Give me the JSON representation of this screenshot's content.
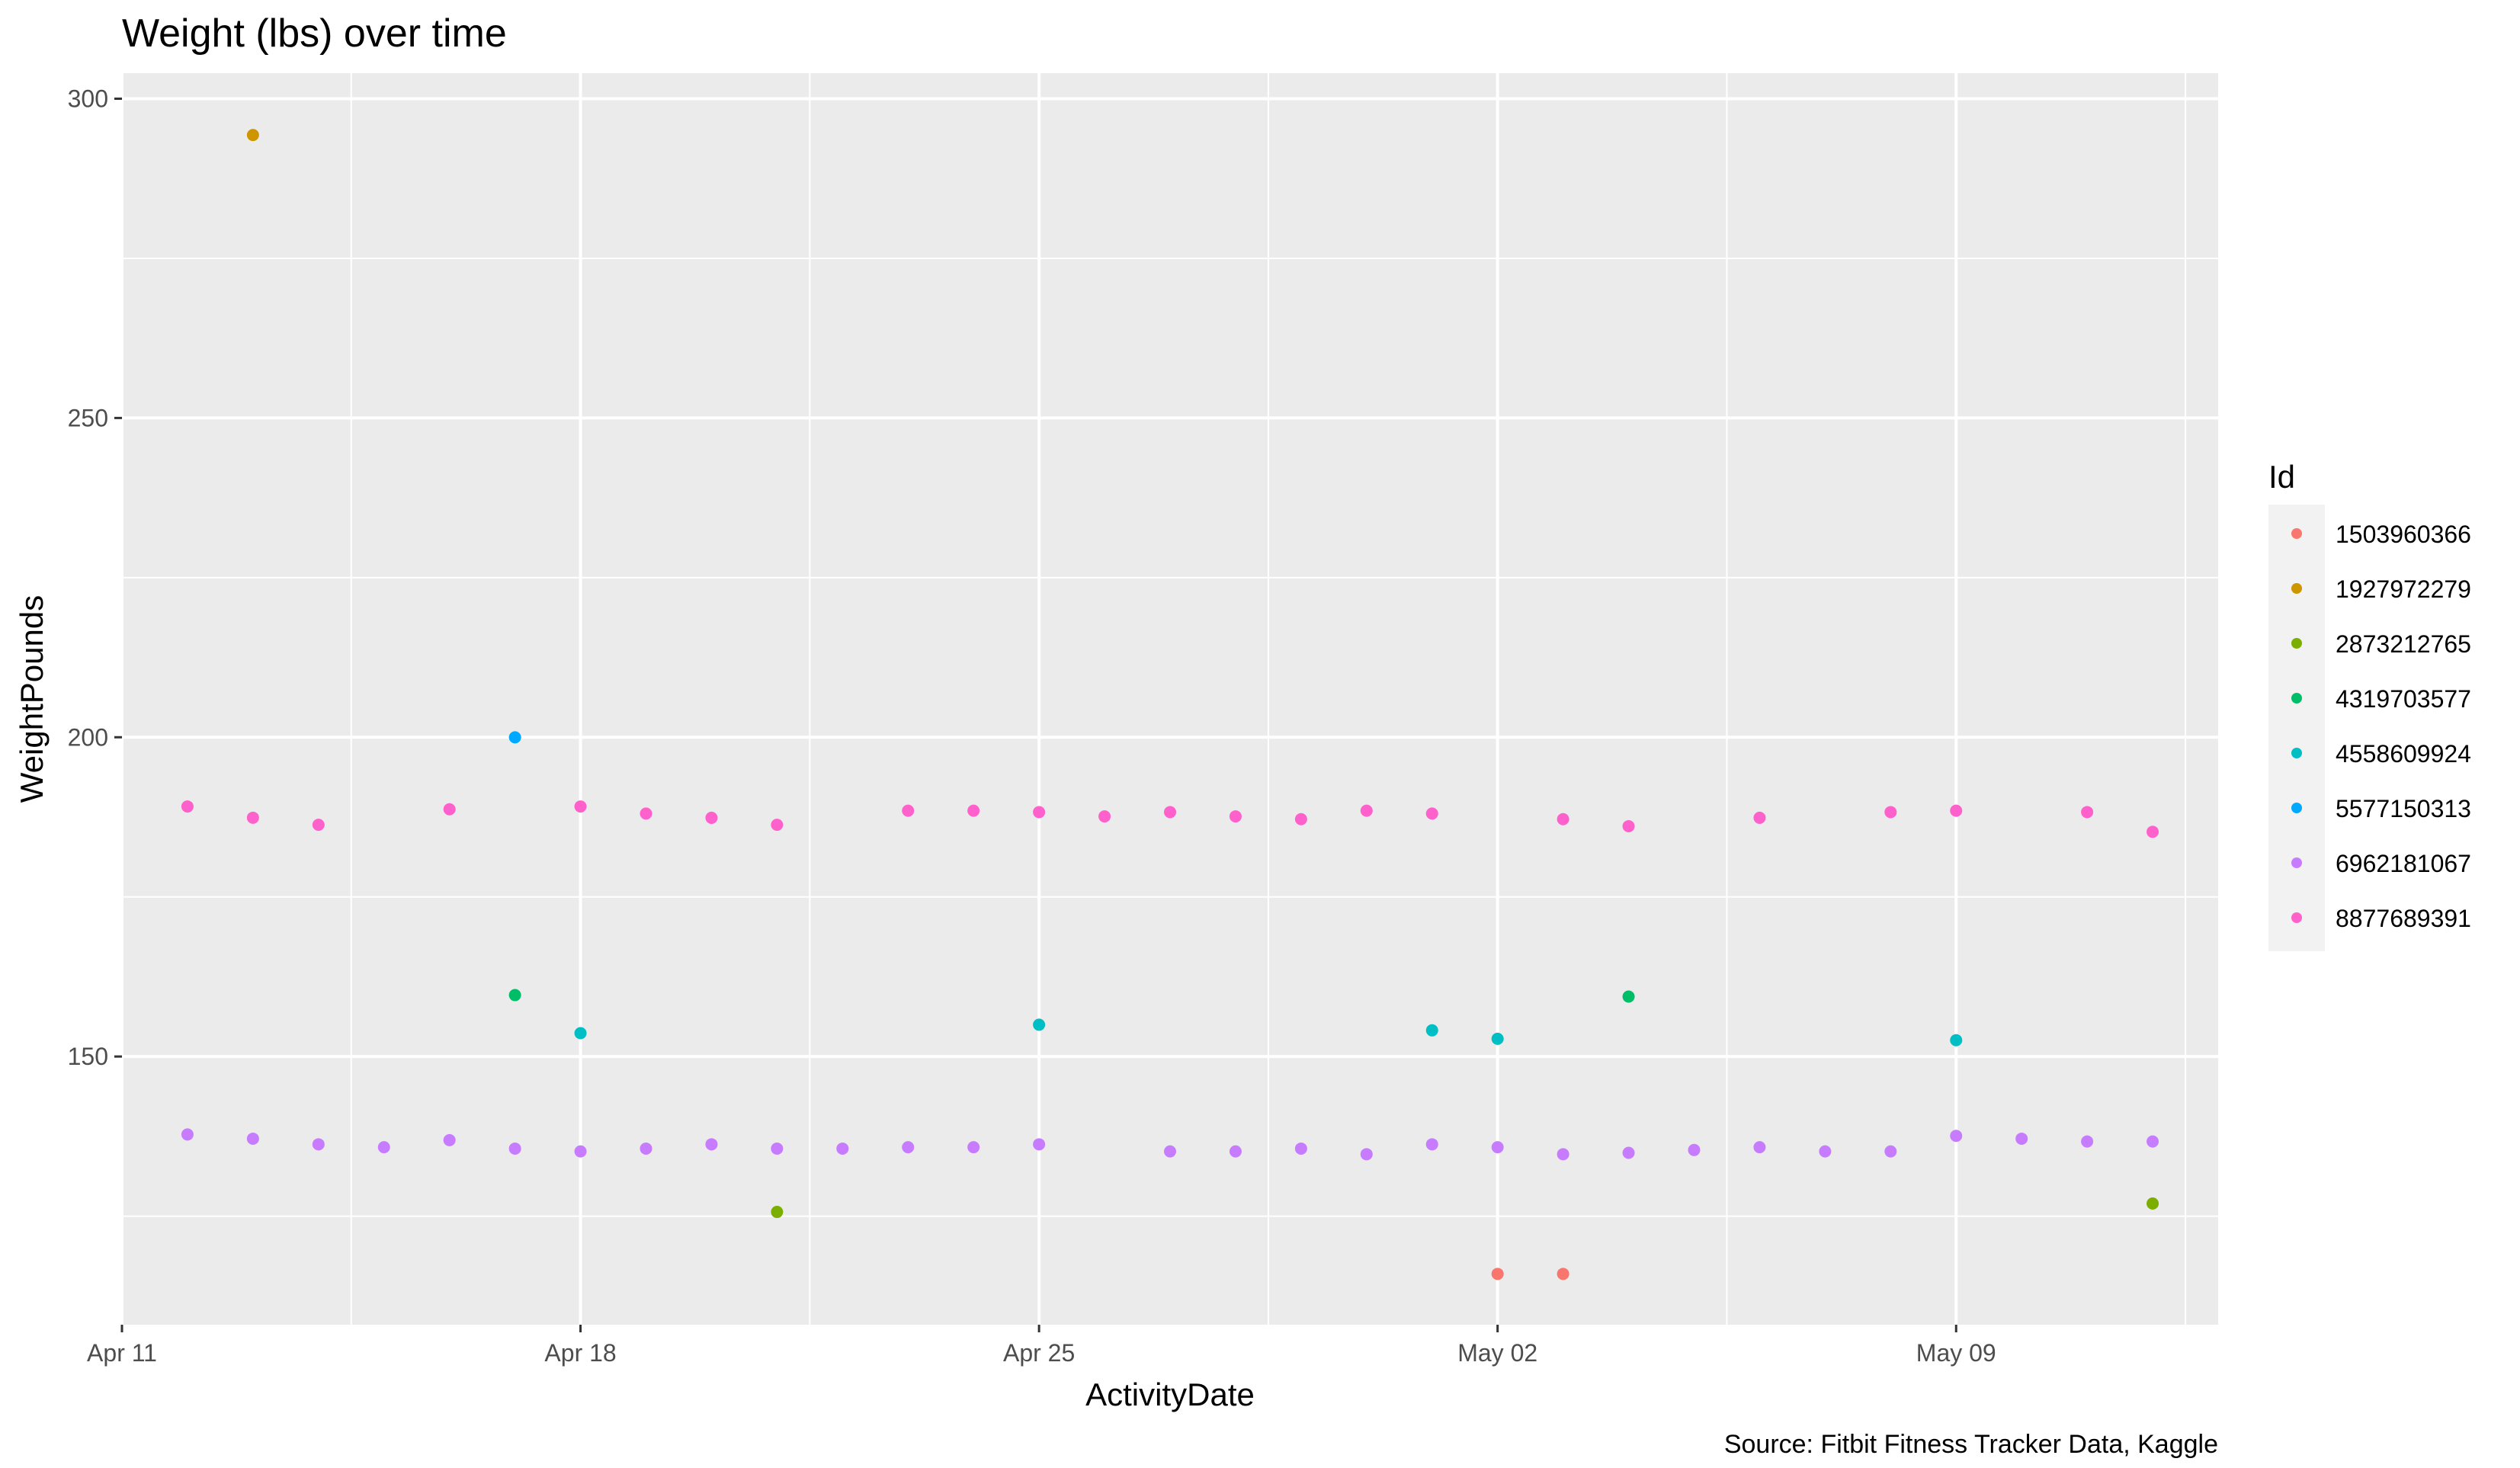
{
  "chart_data": {
    "type": "scatter",
    "title": "Weight (lbs) over time",
    "caption": "Source: Fitbit Fitness Tracker Data, Kaggle",
    "xlabel": "ActivityDate",
    "ylabel": "WeightPounds",
    "x_type": "date",
    "xlim": [
      "2016-04-11",
      "2016-05-13"
    ],
    "ylim": [
      108,
      304
    ],
    "x_ticks": [
      {
        "date": "2016-04-11",
        "label": "Apr 11"
      },
      {
        "date": "2016-04-18",
        "label": "Apr 18"
      },
      {
        "date": "2016-04-25",
        "label": "Apr 25"
      },
      {
        "date": "2016-05-02",
        "label": "May 02"
      },
      {
        "date": "2016-05-09",
        "label": "May 09"
      }
    ],
    "y_ticks": [
      150,
      200,
      250,
      300
    ],
    "grid": true,
    "legend": {
      "title": "Id",
      "position": "right"
    },
    "series": [
      {
        "name": "1503960366",
        "color": "#F8766D",
        "points": [
          {
            "x": "2016-05-02",
            "y": 115.96
          },
          {
            "x": "2016-05-03",
            "y": 115.96
          }
        ]
      },
      {
        "name": "1927972279",
        "color": "#CD9600",
        "points": [
          {
            "x": "2016-04-13",
            "y": 294.32
          }
        ]
      },
      {
        "name": "2873212765",
        "color": "#7CAE00",
        "points": [
          {
            "x": "2016-04-21",
            "y": 125.66
          },
          {
            "x": "2016-05-12",
            "y": 126.98
          }
        ]
      },
      {
        "name": "4319703577",
        "color": "#00BE67",
        "points": [
          {
            "x": "2016-04-17",
            "y": 159.62
          },
          {
            "x": "2016-05-04",
            "y": 159.39
          }
        ]
      },
      {
        "name": "4558609924",
        "color": "#00BFC4",
        "points": [
          {
            "x": "2016-04-18",
            "y": 153.66
          },
          {
            "x": "2016-04-25",
            "y": 154.98
          },
          {
            "x": "2016-05-01",
            "y": 154.1
          },
          {
            "x": "2016-05-02",
            "y": 152.78
          },
          {
            "x": "2016-05-09",
            "y": 152.56
          }
        ]
      },
      {
        "name": "5577150313",
        "color": "#00A9FF",
        "points": [
          {
            "x": "2016-04-17",
            "y": 199.99
          }
        ]
      },
      {
        "name": "6962181067",
        "color": "#C77CFF",
        "points": [
          {
            "x": "2016-04-12",
            "y": 137.79
          },
          {
            "x": "2016-04-13",
            "y": 137.13
          },
          {
            "x": "2016-04-14",
            "y": 136.25
          },
          {
            "x": "2016-04-15",
            "y": 135.8
          },
          {
            "x": "2016-04-16",
            "y": 136.9
          },
          {
            "x": "2016-04-17",
            "y": 135.58
          },
          {
            "x": "2016-04-18",
            "y": 135.14
          },
          {
            "x": "2016-04-19",
            "y": 135.58
          },
          {
            "x": "2016-04-20",
            "y": 136.25
          },
          {
            "x": "2016-04-21",
            "y": 135.58
          },
          {
            "x": "2016-04-22",
            "y": 135.58
          },
          {
            "x": "2016-04-23",
            "y": 135.8
          },
          {
            "x": "2016-04-24",
            "y": 135.8
          },
          {
            "x": "2016-04-25",
            "y": 136.25
          },
          {
            "x": "2016-04-27",
            "y": 135.14
          },
          {
            "x": "2016-04-28",
            "y": 135.14
          },
          {
            "x": "2016-04-29",
            "y": 135.58
          },
          {
            "x": "2016-04-30",
            "y": 134.7
          },
          {
            "x": "2016-05-01",
            "y": 136.25
          },
          {
            "x": "2016-05-02",
            "y": 135.8
          },
          {
            "x": "2016-05-03",
            "y": 134.7
          },
          {
            "x": "2016-05-04",
            "y": 134.92
          },
          {
            "x": "2016-05-05",
            "y": 135.36
          },
          {
            "x": "2016-05-06",
            "y": 135.8
          },
          {
            "x": "2016-05-07",
            "y": 135.14
          },
          {
            "x": "2016-05-08",
            "y": 135.14
          },
          {
            "x": "2016-05-09",
            "y": 137.57
          },
          {
            "x": "2016-05-10",
            "y": 137.13
          },
          {
            "x": "2016-05-11",
            "y": 136.69
          },
          {
            "x": "2016-05-12",
            "y": 136.69
          }
        ]
      },
      {
        "name": "8877689391",
        "color": "#FF61CC",
        "points": [
          {
            "x": "2016-04-12",
            "y": 189.16
          },
          {
            "x": "2016-04-13",
            "y": 187.4
          },
          {
            "x": "2016-04-14",
            "y": 186.29
          },
          {
            "x": "2016-04-16",
            "y": 188.72
          },
          {
            "x": "2016-04-18",
            "y": 189.16
          },
          {
            "x": "2016-04-19",
            "y": 188.05
          },
          {
            "x": "2016-04-20",
            "y": 187.39
          },
          {
            "x": "2016-04-21",
            "y": 186.29
          },
          {
            "x": "2016-04-23",
            "y": 188.5
          },
          {
            "x": "2016-04-24",
            "y": 188.5
          },
          {
            "x": "2016-04-25",
            "y": 188.28
          },
          {
            "x": "2016-04-26",
            "y": 187.61
          },
          {
            "x": "2016-04-27",
            "y": 188.28
          },
          {
            "x": "2016-04-28",
            "y": 187.61
          },
          {
            "x": "2016-04-29",
            "y": 187.17
          },
          {
            "x": "2016-04-30",
            "y": 188.5
          },
          {
            "x": "2016-05-01",
            "y": 188.05
          },
          {
            "x": "2016-05-03",
            "y": 187.17
          },
          {
            "x": "2016-05-04",
            "y": 186.07
          },
          {
            "x": "2016-05-06",
            "y": 187.39
          },
          {
            "x": "2016-05-08",
            "y": 188.28
          },
          {
            "x": "2016-05-09",
            "y": 188.5
          },
          {
            "x": "2016-05-11",
            "y": 188.28
          },
          {
            "x": "2016-05-12",
            "y": 185.19
          }
        ]
      }
    ]
  }
}
